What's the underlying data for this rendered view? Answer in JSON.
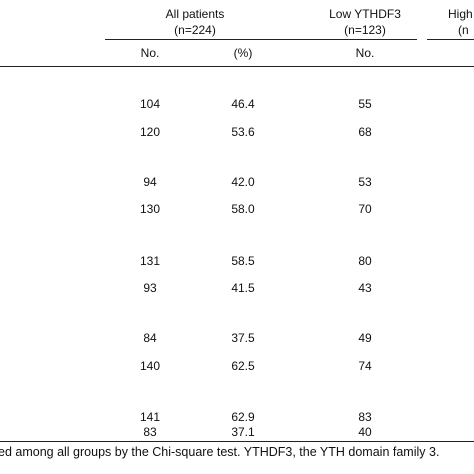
{
  "header": {
    "groups": [
      {
        "title": "All patients",
        "n": "(n=224)"
      },
      {
        "title": "Low YTHDF3",
        "n": "(n=123)"
      },
      {
        "title": "High",
        "n": "(n"
      }
    ],
    "subheaders": [
      "No.",
      "(%)",
      "No."
    ]
  },
  "rows": [
    {
      "no": "104",
      "pct": "46.4",
      "low": "55"
    },
    {
      "no": "120",
      "pct": "53.6",
      "low": "68"
    },
    {
      "no": "94",
      "pct": "42.0",
      "low": "53"
    },
    {
      "no": "130",
      "pct": "58.0",
      "low": "70"
    },
    {
      "no": "131",
      "pct": "58.5",
      "low": "80"
    },
    {
      "no": "93",
      "pct": "41.5",
      "low": "43"
    },
    {
      "no": "84",
      "pct": "37.5",
      "low": "49"
    },
    {
      "no": "140",
      "pct": "62.5",
      "low": "74"
    },
    {
      "no": "141",
      "pct": "62.9",
      "low": "83"
    },
    {
      "no": "83",
      "pct": "37.1",
      "low": "40"
    }
  ],
  "footnote": "ed among all groups by the Chi-square test. YTHDF3, the YTH domain family 3."
}
